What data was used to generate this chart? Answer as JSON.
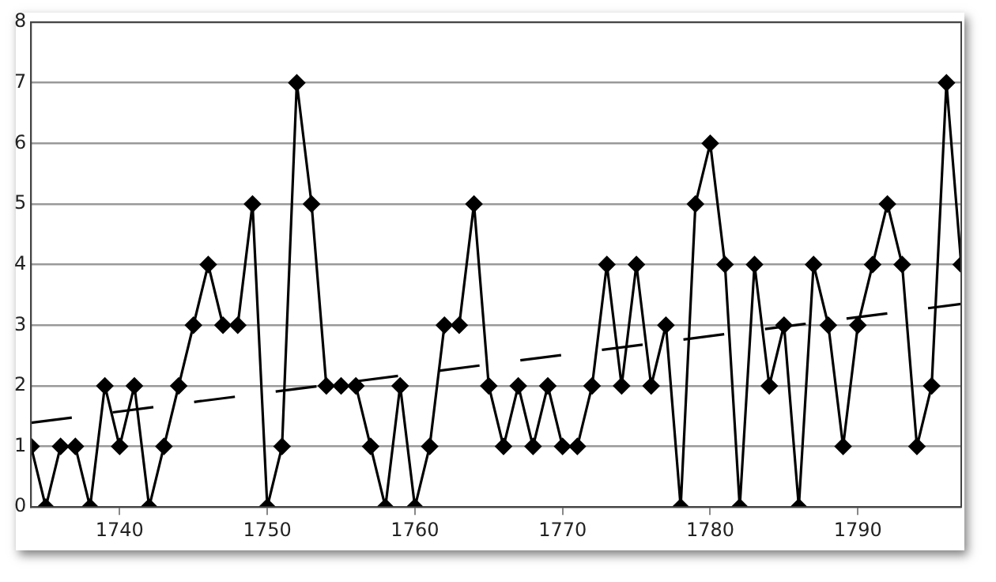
{
  "chart_data": {
    "type": "line",
    "x": [
      1734,
      1735,
      1736,
      1737,
      1738,
      1739,
      1740,
      1741,
      1742,
      1743,
      1744,
      1745,
      1746,
      1747,
      1748,
      1749,
      1750,
      1751,
      1752,
      1753,
      1754,
      1755,
      1756,
      1757,
      1758,
      1759,
      1760,
      1761,
      1762,
      1763,
      1764,
      1765,
      1766,
      1767,
      1768,
      1769,
      1770,
      1771,
      1772,
      1773,
      1774,
      1775,
      1776,
      1777,
      1778,
      1779,
      1780,
      1781,
      1782,
      1783,
      1784,
      1785,
      1786,
      1787,
      1788,
      1789,
      1790,
      1791,
      1792,
      1793,
      1794,
      1795,
      1796,
      1797
    ],
    "series": [
      {
        "color": "#000000",
        "marker": "diamond",
        "line_style": "solid",
        "values": [
          1,
          0,
          1,
          1,
          0,
          2,
          1,
          2,
          0,
          1,
          2,
          3,
          4,
          3,
          3,
          5,
          0,
          1,
          7,
          5,
          2,
          2,
          2,
          1,
          0,
          2,
          0,
          1,
          3,
          3,
          5,
          2,
          1,
          2,
          1,
          2,
          1,
          1,
          2,
          4,
          2,
          4,
          2,
          3,
          0,
          5,
          6,
          4,
          0,
          4,
          2,
          3,
          0,
          4,
          3,
          1,
          3,
          4,
          5,
          4,
          1,
          2,
          7,
          4
        ]
      },
      {
        "type": "line",
        "color": "#000000",
        "marker": "none",
        "line_style": "dashed",
        "x": [
          1734,
          1797
        ],
        "values": [
          1.39,
          3.35
        ]
      }
    ],
    "xlim": [
      1734,
      1797
    ],
    "xticks": [
      1740,
      1750,
      1760,
      1770,
      1780,
      1790
    ],
    "ylim": [
      0,
      8
    ],
    "yticks": [
      0,
      1,
      2,
      3,
      4,
      5,
      6,
      7,
      8
    ],
    "grid": "y",
    "legend": false
  }
}
